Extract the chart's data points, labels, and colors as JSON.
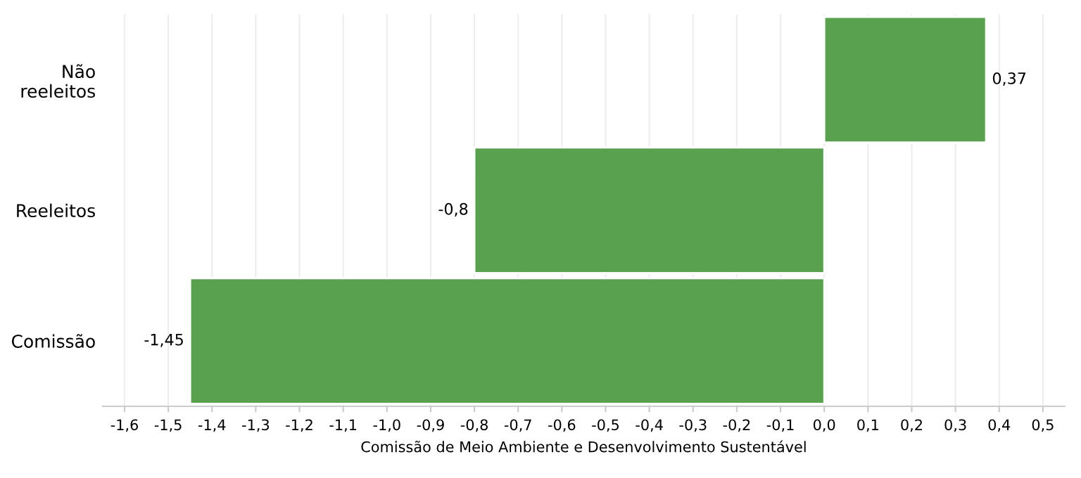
{
  "chart_data": {
    "type": "bar",
    "orientation": "horizontal",
    "categories": [
      "Não\nreeleitos",
      "Reeleitos",
      "Comissão"
    ],
    "values": [
      0.37,
      -0.8,
      -1.45
    ],
    "value_labels": [
      "0,37",
      "-0,8",
      "-1,45"
    ],
    "color": "#59a14f",
    "xlabel": "Comissão de Meio Ambiente e Desenvolvimento Sustentável",
    "xlim": [
      -1.65,
      0.55
    ],
    "xticks": [
      {
        "value": -1.6,
        "label": "-1,6"
      },
      {
        "value": -1.5,
        "label": "-1,5"
      },
      {
        "value": -1.4,
        "label": "-1,4"
      },
      {
        "value": -1.3,
        "label": "-1,3"
      },
      {
        "value": -1.2,
        "label": "-1,2"
      },
      {
        "value": -1.1,
        "label": "-1,1"
      },
      {
        "value": -1.0,
        "label": "-1,0"
      },
      {
        "value": -0.9,
        "label": "-0,9"
      },
      {
        "value": -0.8,
        "label": "-0,8"
      },
      {
        "value": -0.7,
        "label": "-0,7"
      },
      {
        "value": -0.6,
        "label": "-0,6"
      },
      {
        "value": -0.5,
        "label": "-0,5"
      },
      {
        "value": -0.4,
        "label": "-0,4"
      },
      {
        "value": -0.3,
        "label": "-0,3"
      },
      {
        "value": -0.2,
        "label": "-0,2"
      },
      {
        "value": -0.1,
        "label": "-0,1"
      },
      {
        "value": 0.0,
        "label": "0,0"
      },
      {
        "value": 0.1,
        "label": "0,1"
      },
      {
        "value": 0.2,
        "label": "0,2"
      },
      {
        "value": 0.3,
        "label": "0,3"
      },
      {
        "value": 0.4,
        "label": "0,4"
      },
      {
        "value": 0.5,
        "label": "0,5"
      }
    ],
    "grid": "x"
  }
}
